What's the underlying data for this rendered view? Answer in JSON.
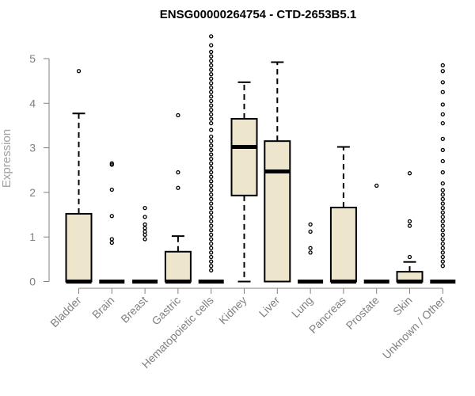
{
  "chart_data": {
    "type": "box",
    "title": "ENSG00000264754 - CTD-2653B5.1",
    "xlabel": "",
    "ylabel": "Expression",
    "ylim": [
      0,
      5.5
    ],
    "yticks": [
      0,
      1,
      2,
      3,
      4,
      5
    ],
    "box_fill": "#ede6cc",
    "categories": [
      "Bladder",
      "Brain",
      "Breast",
      "Gastric",
      "Hematopoietic cells",
      "Kidney",
      "Liver",
      "Lung",
      "Pancreas",
      "Prostate",
      "Skin",
      "Unknown / Other"
    ],
    "boxes": [
      {
        "q1": 0,
        "median": 0,
        "q3": 1.52,
        "whisker_low": 0,
        "whisker_high": 3.77,
        "outliers": [
          4.72
        ]
      },
      {
        "q1": 0,
        "median": 0,
        "q3": 0,
        "whisker_low": 0,
        "whisker_high": 0,
        "outliers": [
          0.87,
          0.95,
          1.47,
          2.06,
          2.62,
          2.65
        ]
      },
      {
        "q1": 0,
        "median": 0,
        "q3": 0,
        "whisker_low": 0,
        "whisker_high": 0,
        "outliers": [
          0.95,
          1.05,
          1.12,
          1.2,
          1.28,
          1.45,
          1.65
        ]
      },
      {
        "q1": 0,
        "median": 0,
        "q3": 0.67,
        "whisker_low": 0,
        "whisker_high": 1.02,
        "outliers": [
          2.1,
          2.45,
          3.73
        ]
      },
      {
        "q1": 0,
        "median": 0,
        "q3": 0,
        "whisker_low": 0,
        "whisker_high": 0,
        "outliers": [
          0.25,
          0.35,
          0.45,
          0.55,
          0.65,
          0.75,
          0.85,
          0.95,
          1.05,
          1.15,
          1.25,
          1.35,
          1.45,
          1.55,
          1.65,
          1.75,
          1.85,
          1.95,
          2.05,
          2.15,
          2.25,
          2.35,
          2.45,
          2.55,
          2.65,
          2.75,
          2.85,
          2.95,
          3.05,
          3.15,
          3.25,
          3.4,
          3.55,
          3.65,
          3.75,
          3.85,
          3.95,
          4.05,
          4.15,
          4.25,
          4.35,
          4.45,
          4.55,
          4.65,
          4.75,
          4.85,
          4.95,
          5.05,
          5.15,
          5.3,
          5.5
        ]
      },
      {
        "q1": 1.93,
        "median": 3.02,
        "q3": 3.65,
        "whisker_low": 0,
        "whisker_high": 4.47,
        "outliers": []
      },
      {
        "q1": 0,
        "median": 2.47,
        "q3": 3.15,
        "whisker_low": 0,
        "whisker_high": 4.92,
        "outliers": []
      },
      {
        "q1": 0,
        "median": 0,
        "q3": 0,
        "whisker_low": 0,
        "whisker_high": 0,
        "outliers": [
          0.65,
          0.75,
          1.12,
          1.28
        ]
      },
      {
        "q1": 0,
        "median": 0,
        "q3": 1.66,
        "whisker_low": 0,
        "whisker_high": 3.02,
        "outliers": []
      },
      {
        "q1": 0,
        "median": 0,
        "q3": 0,
        "whisker_low": 0,
        "whisker_high": 0,
        "outliers": [
          2.15
        ]
      },
      {
        "q1": 0,
        "median": 0,
        "q3": 0.22,
        "whisker_low": 0,
        "whisker_high": 0.44,
        "outliers": [
          0.55,
          1.25,
          1.35,
          2.43
        ]
      },
      {
        "q1": 0,
        "median": 0,
        "q3": 0,
        "whisker_low": 0,
        "whisker_high": 0,
        "outliers": [
          0.35,
          0.45,
          0.55,
          0.65,
          0.75,
          0.85,
          0.95,
          1.05,
          1.15,
          1.25,
          1.35,
          1.45,
          1.55,
          1.65,
          1.75,
          1.85,
          1.95,
          2.05,
          2.2,
          2.45,
          2.7,
          2.95,
          3.2,
          3.55,
          3.75,
          3.97,
          4.25,
          4.47,
          4.72,
          4.85
        ]
      }
    ]
  }
}
